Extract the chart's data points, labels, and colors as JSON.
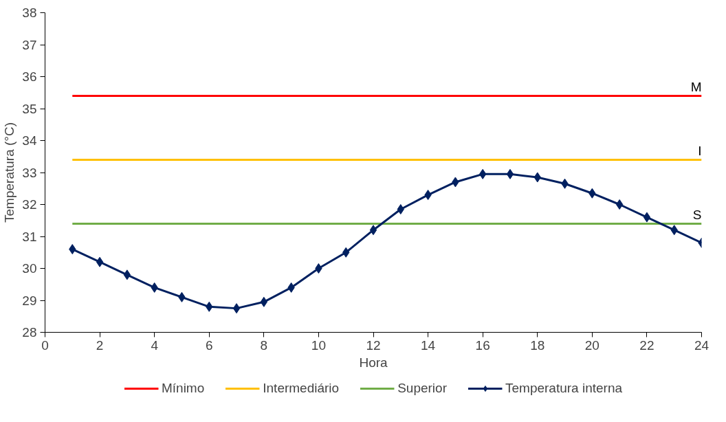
{
  "chart_data": {
    "type": "line",
    "xlabel": "Hora",
    "ylabel": "Temperatura (°C)",
    "xlim": [
      0,
      24
    ],
    "ylim": [
      28,
      38
    ],
    "xticks": [
      0,
      2,
      4,
      6,
      8,
      10,
      12,
      14,
      16,
      18,
      20,
      22,
      24
    ],
    "yticks": [
      28,
      29,
      30,
      31,
      32,
      33,
      34,
      35,
      36,
      37,
      38
    ],
    "x": [
      1,
      2,
      3,
      4,
      5,
      6,
      7,
      8,
      9,
      10,
      11,
      12,
      13,
      14,
      15,
      16,
      17,
      18,
      19,
      20,
      21,
      22,
      23,
      24
    ],
    "series": [
      {
        "name": "Mínimo",
        "color": "#ff0000",
        "values": [
          35.4,
          35.4,
          35.4,
          35.4,
          35.4,
          35.4,
          35.4,
          35.4,
          35.4,
          35.4,
          35.4,
          35.4,
          35.4,
          35.4,
          35.4,
          35.4,
          35.4,
          35.4,
          35.4,
          35.4,
          35.4,
          35.4,
          35.4,
          35.4
        ],
        "marker": "none"
      },
      {
        "name": "Intermediário",
        "color": "#ffc000",
        "values": [
          33.4,
          33.4,
          33.4,
          33.4,
          33.4,
          33.4,
          33.4,
          33.4,
          33.4,
          33.4,
          33.4,
          33.4,
          33.4,
          33.4,
          33.4,
          33.4,
          33.4,
          33.4,
          33.4,
          33.4,
          33.4,
          33.4,
          33.4,
          33.4
        ],
        "marker": "none"
      },
      {
        "name": "Superior",
        "color": "#70ad47",
        "values": [
          31.4,
          31.4,
          31.4,
          31.4,
          31.4,
          31.4,
          31.4,
          31.4,
          31.4,
          31.4,
          31.4,
          31.4,
          31.4,
          31.4,
          31.4,
          31.4,
          31.4,
          31.4,
          31.4,
          31.4,
          31.4,
          31.4,
          31.4,
          31.4
        ],
        "marker": "none"
      },
      {
        "name": "Temperatura interna",
        "color": "#002060",
        "marker": "diamond",
        "values": [
          30.6,
          30.2,
          29.8,
          29.4,
          29.1,
          28.8,
          28.75,
          28.95,
          29.4,
          30.0,
          30.5,
          31.2,
          31.85,
          32.3,
          32.7,
          32.95,
          32.95,
          32.85,
          32.65,
          32.35,
          32.0,
          31.6,
          31.2,
          30.8
        ]
      }
    ],
    "annotations": [
      "M",
      "I",
      "S"
    ],
    "grid": false,
    "legend": "bottom",
    "line_style": "solid"
  }
}
